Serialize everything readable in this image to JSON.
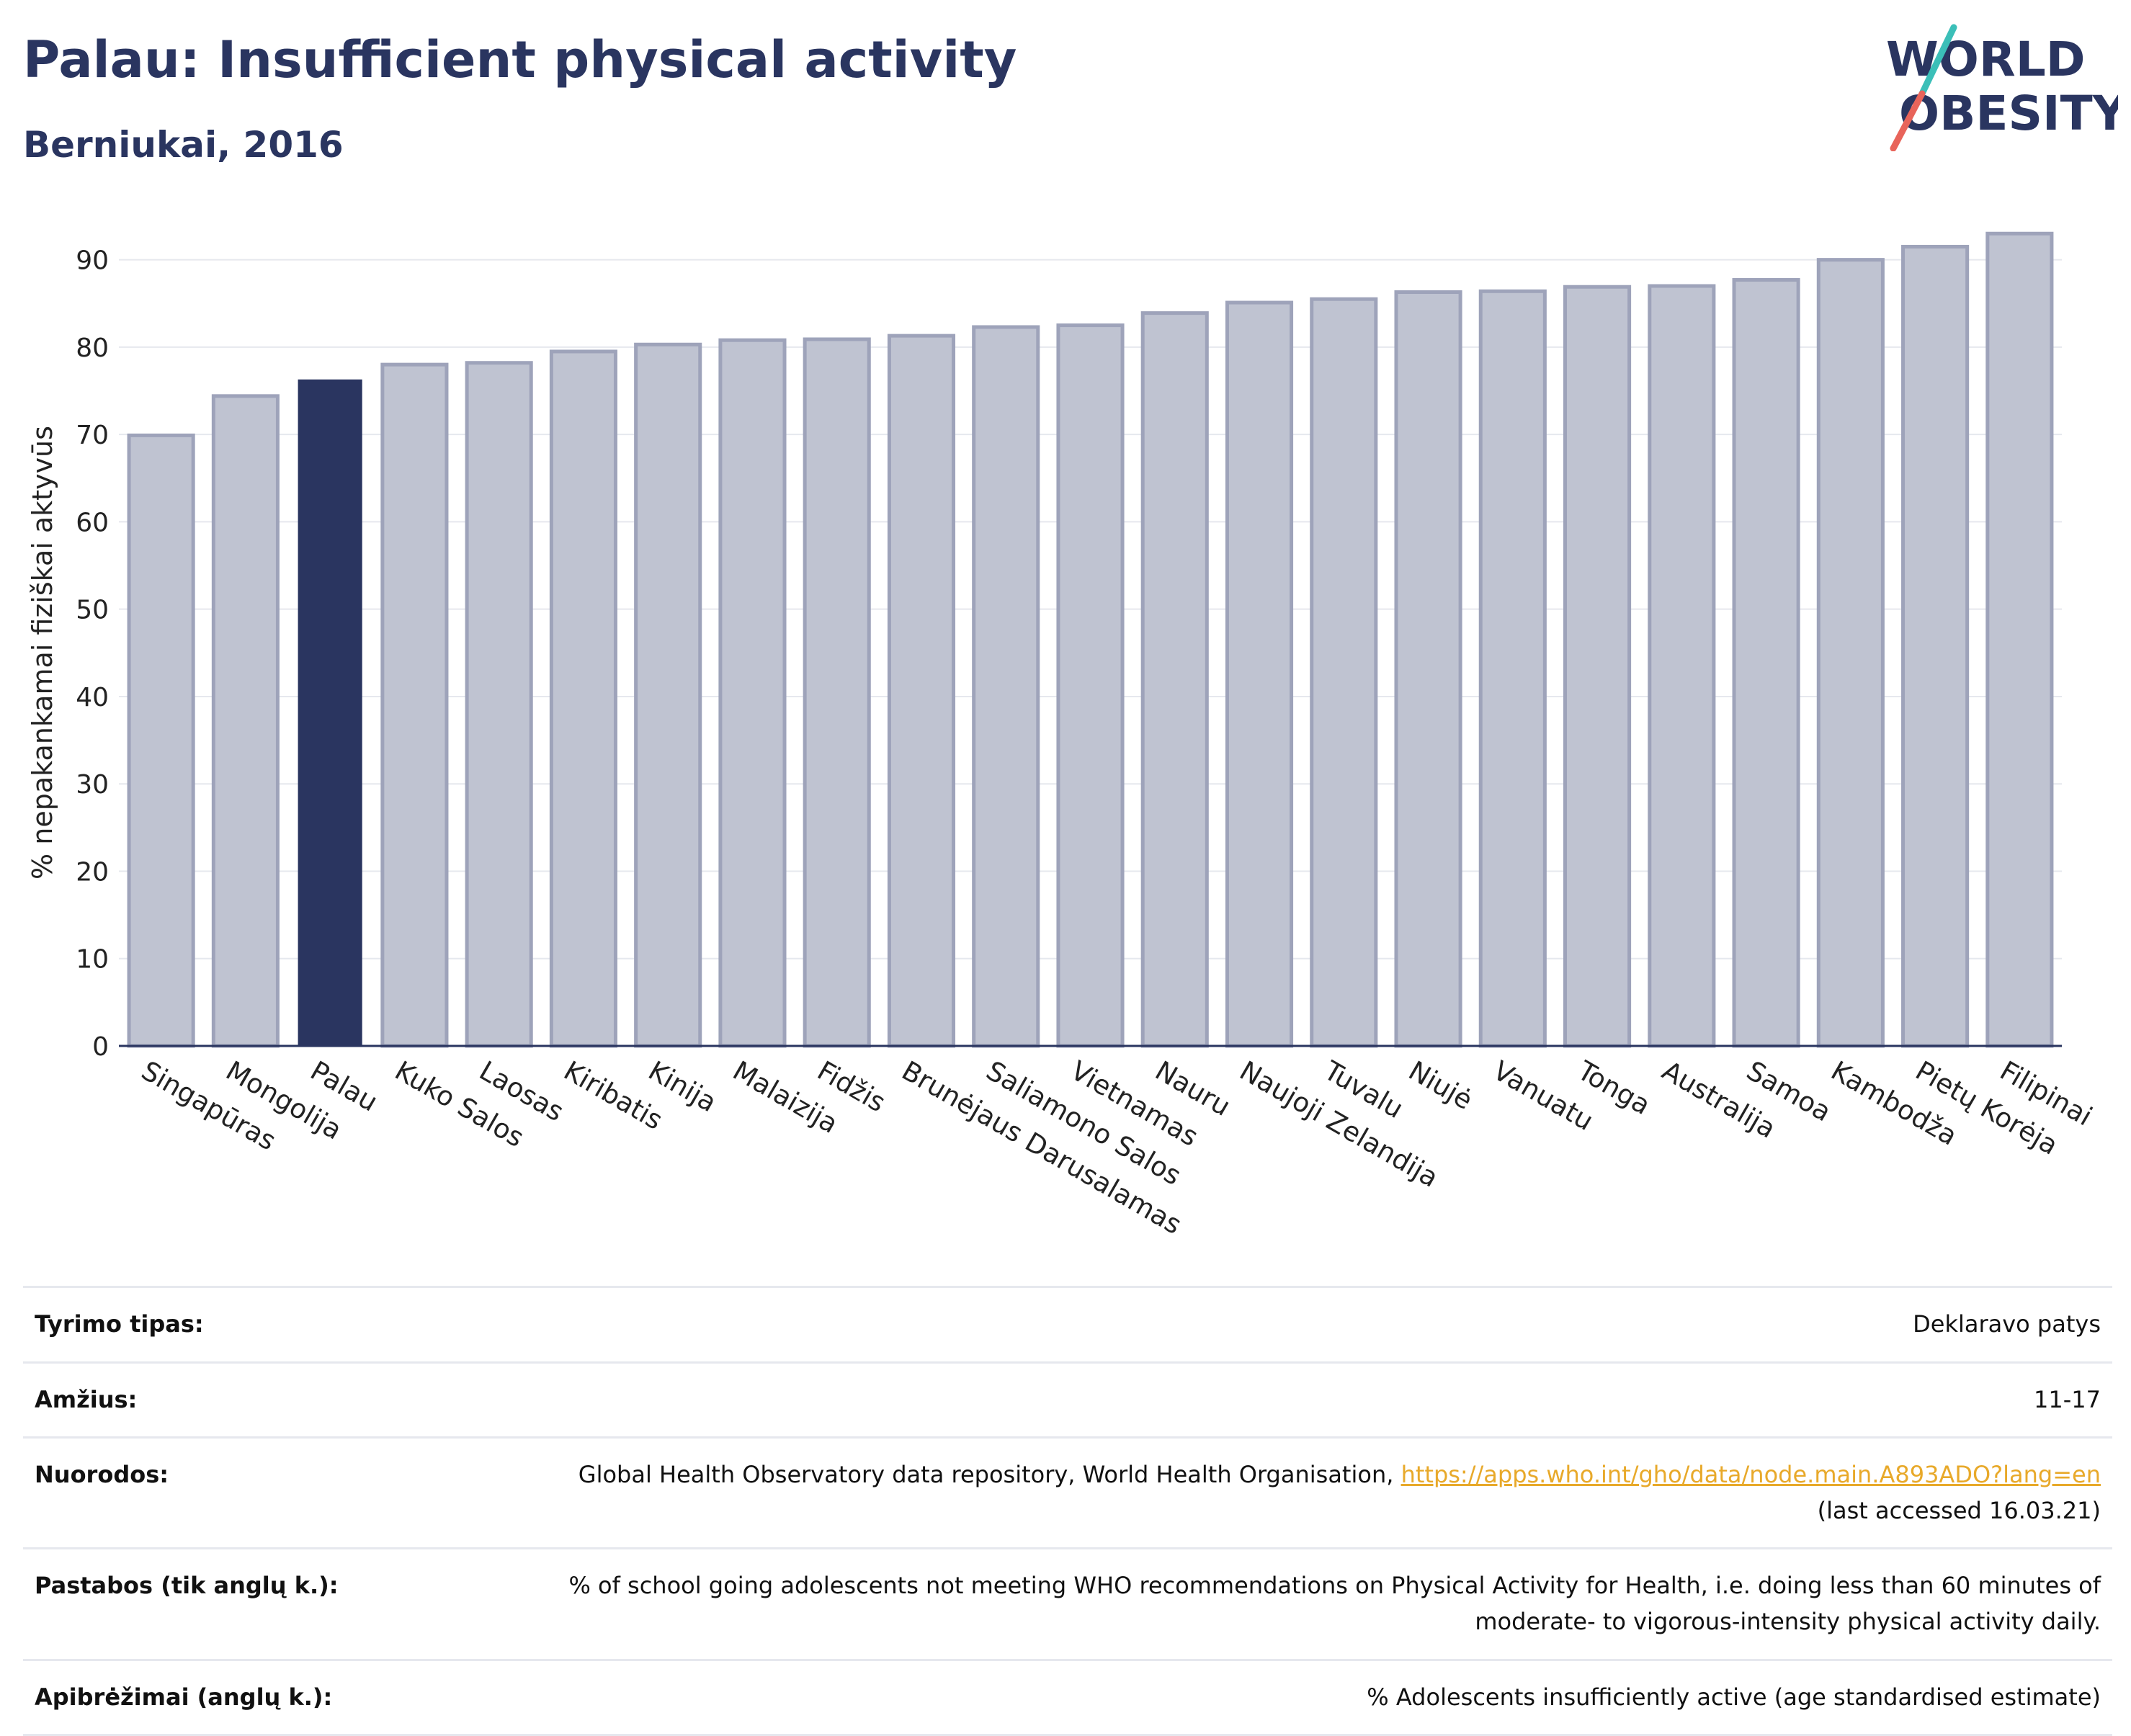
{
  "header": {
    "title": "Palau: Insufficient physical activity",
    "subtitle": "Berniukai, 2016"
  },
  "logo": {
    "line1": "WORLD",
    "line2": "OBESITY",
    "brand_color": "#2a3560",
    "accent_teal": "#3bbfb8",
    "accent_red": "#e8645a"
  },
  "colors": {
    "highlight_bar": "#2a3560",
    "normal_bar_fill": "#bfc3d1",
    "normal_bar_border": "#9ea3ba",
    "link": "#e8a92a"
  },
  "chart_data": {
    "type": "bar",
    "title": "Palau: Insufficient physical activity",
    "subtitle": "Berniukai, 2016",
    "ylabel": "% nepakankamai fiziškai aktyvūs",
    "xlabel": "",
    "ylim": [
      0,
      95
    ],
    "yticks": [
      0,
      10,
      20,
      30,
      40,
      50,
      60,
      70,
      80,
      90
    ],
    "grid": true,
    "highlight": "Palau",
    "categories": [
      "Singapūras",
      "Mongolija",
      "Palau",
      "Kuko Salos",
      "Laosas",
      "Kiribatis",
      "Kinija",
      "Malaizija",
      "Fidžis",
      "Brunėjaus Darusalamas",
      "Saliamono Salos",
      "Vietnamas",
      "Nauru",
      "Naujoji Zelandija",
      "Tuvalu",
      "Niujė",
      "Vanuatu",
      "Tonga",
      "Australija",
      "Samoa",
      "Kambodža",
      "Pietų Korėja",
      "Filipinai"
    ],
    "values": [
      69.9,
      74.4,
      76.3,
      78.0,
      78.2,
      79.5,
      80.3,
      80.8,
      80.9,
      81.3,
      82.3,
      82.5,
      83.9,
      85.1,
      85.5,
      86.3,
      86.4,
      86.9,
      87.0,
      87.7,
      90.0,
      91.5,
      93.0
    ]
  },
  "info": {
    "rows": [
      {
        "label": "Tyrimo tipas:",
        "value": "Deklaravo patys"
      },
      {
        "label": "Amžius:",
        "value": "11-17"
      },
      {
        "label": "Nuorodos:",
        "value": "Global Health Observatory data repository, World Health Organisation, ",
        "link": "https://apps.who.int/gho/data/node.main.A893ADO?lang=en",
        "value2": "(last accessed 16.03.21)"
      },
      {
        "label": "Pastabos (tik anglų k.):",
        "value": "% of school going adolescents not meeting WHO recommendations on Physical Activity for Health, i.e. doing less than 60 minutes of moderate- to vigorous-intensity physical activity daily."
      },
      {
        "label": "Apibrėžimai (anglų k.):",
        "value": "% Adolescents insufficiently active (age standardised estimate)"
      }
    ]
  }
}
